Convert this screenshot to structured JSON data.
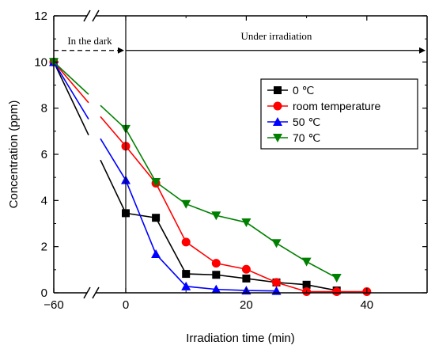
{
  "chart_data": {
    "type": "line",
    "xlabel": "Irradiation time (min)",
    "ylabel": "Concentration (ppm)",
    "xlim": [
      -60,
      50
    ],
    "ylim": [
      0,
      12
    ],
    "axis_break": "x",
    "xticks": [
      -60,
      0,
      20,
      40
    ],
    "xtick_labels": [
      "−60",
      "0",
      "20",
      "40"
    ],
    "yticks": [
      0,
      2,
      4,
      6,
      8,
      10,
      12
    ],
    "annotations": {
      "dark": "In the dark",
      "irradiation": "Under irradiation"
    },
    "legend_position": "top-right",
    "series": [
      {
        "name": "0 ℃",
        "color": "#000000",
        "marker": "square",
        "x": [
          -60,
          0,
          5,
          10,
          15,
          20,
          25,
          30,
          35
        ],
        "y": [
          10.0,
          3.45,
          3.25,
          0.82,
          0.78,
          0.62,
          0.45,
          0.35,
          0.1
        ]
      },
      {
        "name": "room temperature",
        "color": "#ff0000",
        "marker": "circle",
        "x": [
          -60,
          0,
          5,
          10,
          15,
          20,
          25,
          30,
          35,
          40
        ],
        "y": [
          10.0,
          6.35,
          4.75,
          2.2,
          1.28,
          1.02,
          0.45,
          0.05,
          0.05,
          0.05
        ]
      },
      {
        "name": "50 ℃",
        "color": "#0000ff",
        "marker": "triangle-up",
        "x": [
          -60,
          0,
          5,
          10,
          15,
          20,
          25
        ],
        "y": [
          10.0,
          4.88,
          1.68,
          0.28,
          0.15,
          0.1,
          0.08
        ]
      },
      {
        "name": "70 ℃",
        "color": "#008000",
        "marker": "triangle-down",
        "x": [
          -60,
          0,
          5,
          10,
          15,
          20,
          25,
          30,
          35
        ],
        "y": [
          10.0,
          7.1,
          4.8,
          3.85,
          3.35,
          3.05,
          2.15,
          1.35,
          0.65
        ]
      }
    ]
  }
}
